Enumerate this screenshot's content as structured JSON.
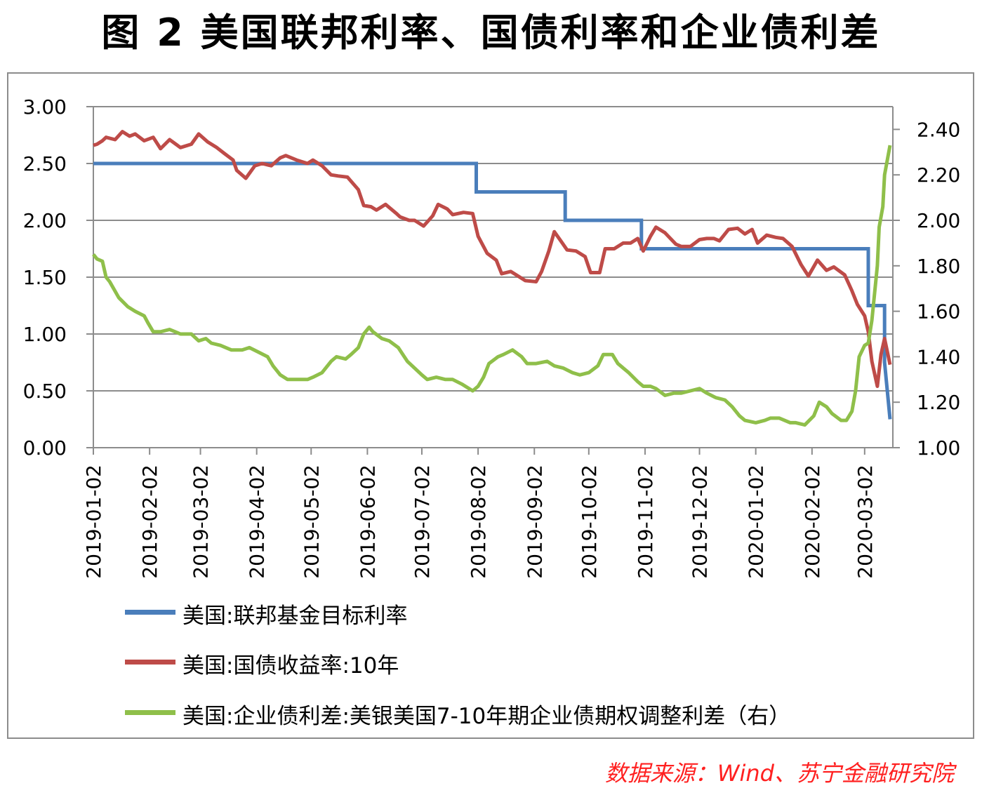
{
  "title": "图 2 美国联邦利率、国债利率和企业债利差",
  "source": "数据来源：Wind、苏宁金融研究院",
  "chart_data": {
    "type": "line",
    "y_left": {
      "ticks": [
        "0.00",
        "0.50",
        "1.00",
        "1.50",
        "2.00",
        "2.50",
        "3.00"
      ],
      "range": [
        0,
        3
      ]
    },
    "y_right": {
      "ticks": [
        "1.00",
        "1.20",
        "1.40",
        "1.60",
        "1.80",
        "2.00",
        "2.20",
        "2.40"
      ],
      "range": [
        1.0,
        2.5
      ]
    },
    "x_ticks": [
      "2019-01-02",
      "2019-02-02",
      "2019-03-02",
      "2019-04-02",
      "2019-05-02",
      "2019-06-02",
      "2019-07-02",
      "2019-08-02",
      "2019-09-02",
      "2019-10-02",
      "2019-11-02",
      "2019-12-02",
      "2020-01-02",
      "2020-02-02",
      "2020-03-02"
    ],
    "x_range": [
      "2019-01-02",
      "2020-03-16"
    ],
    "grid": "horizontal",
    "legend_position": "bottom",
    "series": [
      {
        "name": "美国:联邦基金目标利率",
        "axis": "left",
        "color": "#4a7ebb",
        "step": true,
        "points": [
          [
            "2019-01-02",
            2.5
          ],
          [
            "2019-08-01",
            2.5
          ],
          [
            "2019-08-01",
            2.25
          ],
          [
            "2019-09-19",
            2.25
          ],
          [
            "2019-09-19",
            2.0
          ],
          [
            "2019-10-31",
            2.0
          ],
          [
            "2019-10-31",
            1.75
          ],
          [
            "2020-03-04",
            1.75
          ],
          [
            "2020-03-04",
            1.25
          ],
          [
            "2020-03-13",
            1.25
          ],
          [
            "2020-03-13",
            0.75
          ],
          [
            "2020-03-16",
            0.25
          ]
        ]
      },
      {
        "name": "美国:国债收益率:10年",
        "axis": "left",
        "color": "#be4b48",
        "points": [
          [
            "2019-01-02",
            2.66
          ],
          [
            "2019-01-04",
            2.67
          ],
          [
            "2019-01-07",
            2.7
          ],
          [
            "2019-01-09",
            2.73
          ],
          [
            "2019-01-14",
            2.71
          ],
          [
            "2019-01-18",
            2.78
          ],
          [
            "2019-01-22",
            2.74
          ],
          [
            "2019-01-25",
            2.76
          ],
          [
            "2019-01-30",
            2.7
          ],
          [
            "2019-02-04",
            2.73
          ],
          [
            "2019-02-08",
            2.63
          ],
          [
            "2019-02-13",
            2.71
          ],
          [
            "2019-02-19",
            2.64
          ],
          [
            "2019-02-25",
            2.67
          ],
          [
            "2019-03-01",
            2.76
          ],
          [
            "2019-03-06",
            2.69
          ],
          [
            "2019-03-11",
            2.64
          ],
          [
            "2019-03-15",
            2.59
          ],
          [
            "2019-03-20",
            2.53
          ],
          [
            "2019-03-22",
            2.44
          ],
          [
            "2019-03-27",
            2.37
          ],
          [
            "2019-04-01",
            2.48
          ],
          [
            "2019-04-05",
            2.5
          ],
          [
            "2019-04-10",
            2.48
          ],
          [
            "2019-04-15",
            2.55
          ],
          [
            "2019-04-18",
            2.57
          ],
          [
            "2019-04-24",
            2.53
          ],
          [
            "2019-04-30",
            2.5
          ],
          [
            "2019-05-03",
            2.53
          ],
          [
            "2019-05-08",
            2.48
          ],
          [
            "2019-05-13",
            2.4
          ],
          [
            "2019-05-17",
            2.39
          ],
          [
            "2019-05-22",
            2.38
          ],
          [
            "2019-05-28",
            2.27
          ],
          [
            "2019-05-31",
            2.13
          ],
          [
            "2019-06-04",
            2.12
          ],
          [
            "2019-06-07",
            2.09
          ],
          [
            "2019-06-12",
            2.14
          ],
          [
            "2019-06-18",
            2.06
          ],
          [
            "2019-06-20",
            2.03
          ],
          [
            "2019-06-25",
            2.0
          ],
          [
            "2019-06-28",
            2.0
          ],
          [
            "2019-07-03",
            1.95
          ],
          [
            "2019-07-08",
            2.04
          ],
          [
            "2019-07-11",
            2.14
          ],
          [
            "2019-07-16",
            2.1
          ],
          [
            "2019-07-19",
            2.05
          ],
          [
            "2019-07-25",
            2.07
          ],
          [
            "2019-07-30",
            2.06
          ],
          [
            "2019-08-02",
            1.86
          ],
          [
            "2019-08-07",
            1.71
          ],
          [
            "2019-08-12",
            1.65
          ],
          [
            "2019-08-15",
            1.53
          ],
          [
            "2019-08-20",
            1.55
          ],
          [
            "2019-08-23",
            1.52
          ],
          [
            "2019-08-28",
            1.47
          ],
          [
            "2019-09-03",
            1.46
          ],
          [
            "2019-09-06",
            1.55
          ],
          [
            "2019-09-10",
            1.73
          ],
          [
            "2019-09-13",
            1.9
          ],
          [
            "2019-09-17",
            1.81
          ],
          [
            "2019-09-20",
            1.74
          ],
          [
            "2019-09-25",
            1.73
          ],
          [
            "2019-09-30",
            1.68
          ],
          [
            "2019-10-03",
            1.54
          ],
          [
            "2019-10-08",
            1.54
          ],
          [
            "2019-10-11",
            1.75
          ],
          [
            "2019-10-16",
            1.75
          ],
          [
            "2019-10-21",
            1.8
          ],
          [
            "2019-10-25",
            1.8
          ],
          [
            "2019-10-29",
            1.84
          ],
          [
            "2019-11-01",
            1.73
          ],
          [
            "2019-11-05",
            1.86
          ],
          [
            "2019-11-08",
            1.94
          ],
          [
            "2019-11-13",
            1.89
          ],
          [
            "2019-11-19",
            1.79
          ],
          [
            "2019-11-22",
            1.77
          ],
          [
            "2019-11-27",
            1.77
          ],
          [
            "2019-12-02",
            1.83
          ],
          [
            "2019-12-06",
            1.84
          ],
          [
            "2019-12-10",
            1.84
          ],
          [
            "2019-12-13",
            1.82
          ],
          [
            "2019-12-18",
            1.92
          ],
          [
            "2019-12-23",
            1.93
          ],
          [
            "2019-12-27",
            1.88
          ],
          [
            "2019-12-31",
            1.92
          ],
          [
            "2020-01-03",
            1.8
          ],
          [
            "2020-01-08",
            1.87
          ],
          [
            "2020-01-13",
            1.85
          ],
          [
            "2020-01-17",
            1.84
          ],
          [
            "2020-01-22",
            1.77
          ],
          [
            "2020-01-27",
            1.61
          ],
          [
            "2020-01-31",
            1.51
          ],
          [
            "2020-02-05",
            1.65
          ],
          [
            "2020-02-10",
            1.56
          ],
          [
            "2020-02-14",
            1.59
          ],
          [
            "2020-02-20",
            1.52
          ],
          [
            "2020-02-24",
            1.38
          ],
          [
            "2020-02-27",
            1.26
          ],
          [
            "2020-03-02",
            1.16
          ],
          [
            "2020-03-04",
            1.02
          ],
          [
            "2020-03-06",
            0.76
          ],
          [
            "2020-03-09",
            0.54
          ],
          [
            "2020-03-11",
            0.82
          ],
          [
            "2020-03-13",
            0.96
          ],
          [
            "2020-03-16",
            0.73
          ]
        ]
      },
      {
        "name": "美国:企业债利差:美银美国7-10年期企业债期权调整利差（右）",
        "axis": "right",
        "color": "#8fbf4a",
        "points": [
          [
            "2019-01-02",
            1.85
          ],
          [
            "2019-01-04",
            1.83
          ],
          [
            "2019-01-07",
            1.82
          ],
          [
            "2019-01-09",
            1.75
          ],
          [
            "2019-01-11",
            1.73
          ],
          [
            "2019-01-16",
            1.66
          ],
          [
            "2019-01-21",
            1.62
          ],
          [
            "2019-01-25",
            1.6
          ],
          [
            "2019-01-30",
            1.58
          ],
          [
            "2019-02-01",
            1.55
          ],
          [
            "2019-02-04",
            1.51
          ],
          [
            "2019-02-08",
            1.51
          ],
          [
            "2019-02-13",
            1.52
          ],
          [
            "2019-02-19",
            1.5
          ],
          [
            "2019-02-25",
            1.5
          ],
          [
            "2019-03-01",
            1.47
          ],
          [
            "2019-03-05",
            1.48
          ],
          [
            "2019-03-08",
            1.46
          ],
          [
            "2019-03-13",
            1.45
          ],
          [
            "2019-03-19",
            1.43
          ],
          [
            "2019-03-25",
            1.43
          ],
          [
            "2019-03-29",
            1.44
          ],
          [
            "2019-04-03",
            1.42
          ],
          [
            "2019-04-08",
            1.4
          ],
          [
            "2019-04-11",
            1.36
          ],
          [
            "2019-04-15",
            1.32
          ],
          [
            "2019-04-19",
            1.3
          ],
          [
            "2019-04-24",
            1.3
          ],
          [
            "2019-04-30",
            1.3
          ],
          [
            "2019-05-03",
            1.31
          ],
          [
            "2019-05-08",
            1.33
          ],
          [
            "2019-05-13",
            1.38
          ],
          [
            "2019-05-16",
            1.4
          ],
          [
            "2019-05-21",
            1.39
          ],
          [
            "2019-05-24",
            1.41
          ],
          [
            "2019-05-28",
            1.44
          ],
          [
            "2019-05-31",
            1.5
          ],
          [
            "2019-06-03",
            1.53
          ],
          [
            "2019-06-05",
            1.51
          ],
          [
            "2019-06-10",
            1.48
          ],
          [
            "2019-06-14",
            1.47
          ],
          [
            "2019-06-19",
            1.44
          ],
          [
            "2019-06-24",
            1.38
          ],
          [
            "2019-06-28",
            1.35
          ],
          [
            "2019-07-02",
            1.32
          ],
          [
            "2019-07-05",
            1.3
          ],
          [
            "2019-07-10",
            1.31
          ],
          [
            "2019-07-15",
            1.3
          ],
          [
            "2019-07-19",
            1.3
          ],
          [
            "2019-07-24",
            1.28
          ],
          [
            "2019-07-30",
            1.25
          ],
          [
            "2019-08-02",
            1.27
          ],
          [
            "2019-08-05",
            1.31
          ],
          [
            "2019-08-08",
            1.37
          ],
          [
            "2019-08-13",
            1.4
          ],
          [
            "2019-08-16",
            1.41
          ],
          [
            "2019-08-21",
            1.43
          ],
          [
            "2019-08-26",
            1.4
          ],
          [
            "2019-08-29",
            1.37
          ],
          [
            "2019-09-03",
            1.37
          ],
          [
            "2019-09-09",
            1.38
          ],
          [
            "2019-09-13",
            1.36
          ],
          [
            "2019-09-18",
            1.35
          ],
          [
            "2019-09-23",
            1.33
          ],
          [
            "2019-09-27",
            1.32
          ],
          [
            "2019-10-02",
            1.33
          ],
          [
            "2019-10-07",
            1.36
          ],
          [
            "2019-10-10",
            1.41
          ],
          [
            "2019-10-15",
            1.41
          ],
          [
            "2019-10-18",
            1.37
          ],
          [
            "2019-10-24",
            1.33
          ],
          [
            "2019-10-29",
            1.29
          ],
          [
            "2019-11-01",
            1.27
          ],
          [
            "2019-11-05",
            1.27
          ],
          [
            "2019-11-08",
            1.26
          ],
          [
            "2019-11-13",
            1.23
          ],
          [
            "2019-11-18",
            1.24
          ],
          [
            "2019-11-22",
            1.24
          ],
          [
            "2019-11-27",
            1.25
          ],
          [
            "2019-12-02",
            1.26
          ],
          [
            "2019-12-06",
            1.24
          ],
          [
            "2019-12-11",
            1.22
          ],
          [
            "2019-12-16",
            1.21
          ],
          [
            "2019-12-20",
            1.18
          ],
          [
            "2019-12-24",
            1.14
          ],
          [
            "2019-12-27",
            1.12
          ],
          [
            "2020-01-02",
            1.11
          ],
          [
            "2020-01-07",
            1.12
          ],
          [
            "2020-01-10",
            1.13
          ],
          [
            "2020-01-15",
            1.13
          ],
          [
            "2020-01-21",
            1.11
          ],
          [
            "2020-01-24",
            1.11
          ],
          [
            "2020-01-29",
            1.1
          ],
          [
            "2020-02-03",
            1.14
          ],
          [
            "2020-02-06",
            1.2
          ],
          [
            "2020-02-10",
            1.18
          ],
          [
            "2020-02-13",
            1.15
          ],
          [
            "2020-02-18",
            1.12
          ],
          [
            "2020-02-21",
            1.12
          ],
          [
            "2020-02-24",
            1.16
          ],
          [
            "2020-02-26",
            1.25
          ],
          [
            "2020-02-28",
            1.4
          ],
          [
            "2020-03-02",
            1.45
          ],
          [
            "2020-03-04",
            1.46
          ],
          [
            "2020-03-06",
            1.56
          ],
          [
            "2020-03-09",
            1.8
          ],
          [
            "2020-03-10",
            1.97
          ],
          [
            "2020-03-12",
            2.06
          ],
          [
            "2020-03-13",
            2.2
          ],
          [
            "2020-03-16",
            2.33
          ]
        ]
      }
    ]
  },
  "legend": [
    {
      "label": "美国:联邦基金目标利率",
      "color": "#4a7ebb"
    },
    {
      "label": "美国:国债收益率:10年",
      "color": "#be4b48"
    },
    {
      "label": "美国:企业债利差:美银美国7-10年期企业债期权调整利差（右）",
      "color": "#8fbf4a"
    }
  ]
}
